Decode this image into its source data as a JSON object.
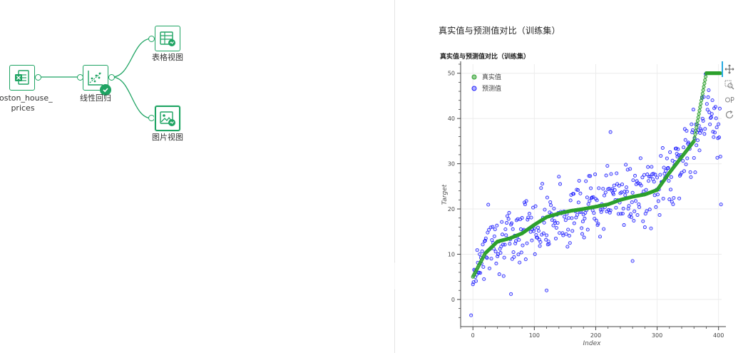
{
  "workflow": {
    "nodes": [
      {
        "id": "data",
        "label_lines": [
          "boston_house_",
          "prices"
        ],
        "icon": "excel-file-icon"
      },
      {
        "id": "linreg",
        "label_lines": [
          "线性回归"
        ],
        "icon": "regression-scatter-icon",
        "status": "success"
      },
      {
        "id": "table",
        "label_lines": [
          "表格视图"
        ],
        "icon": "table-view-icon"
      },
      {
        "id": "image",
        "label_lines": [
          "图片视图"
        ],
        "icon": "image-view-icon"
      }
    ],
    "colors": {
      "accent": "#1fa463",
      "success": "#1fa463"
    }
  },
  "panel": {
    "title": "真实值与预测值对比（训练集）",
    "collapse_glyph": "‹",
    "toolbar": [
      "pan-icon",
      "box-zoom-icon",
      "wheel-zoom-icon",
      "reset-icon"
    ]
  },
  "chart_data": {
    "type": "scatter",
    "title": "真实值与预测值对比（训练集）",
    "xlabel": "Index",
    "ylabel": "Target",
    "xlim": [
      -20,
      405
    ],
    "ylim": [
      -6,
      52
    ],
    "xticks": [
      0,
      100,
      200,
      300,
      400
    ],
    "yticks": [
      0,
      10,
      20,
      30,
      40,
      50
    ],
    "grid": true,
    "legend": {
      "position": "top-left",
      "entries": [
        "真实值",
        "预测值"
      ]
    },
    "colors": {
      "真实值": "#2ca02c",
      "预测值": "#1f1fff"
    },
    "n_points": 404,
    "series": [
      {
        "name": "真实值",
        "note_style": "sorted ascending",
        "x_start": 0,
        "x_end": 403,
        "values_sampled_every_20": [
          5.0,
          10.2,
          12.8,
          13.5,
          14.6,
          16.5,
          18.2,
          19.0,
          19.6,
          20.0,
          20.5,
          21.0,
          22.0,
          22.7,
          23.2,
          24.2,
          28.0,
          31.5,
          35.0,
          50.0,
          50.0
        ]
      },
      {
        "name": "预测值",
        "values_sampled_every_20": [
          6.5,
          13.0,
          16.0,
          11.0,
          19.0,
          15.0,
          20.0,
          18.5,
          17.5,
          23.0,
          21.5,
          24.0,
          26.0,
          22.0,
          23.5,
          26.0,
          28.0,
          30.0,
          33.0,
          40.5,
          21.0
        ],
        "outliers": [
          [
            -3,
            -3.5
          ],
          [
            62,
            1.2
          ],
          [
            120,
            2.0
          ],
          [
            224,
            37.0
          ],
          [
            260,
            8.5
          ],
          [
            404,
            21.0
          ]
        ]
      }
    ]
  }
}
